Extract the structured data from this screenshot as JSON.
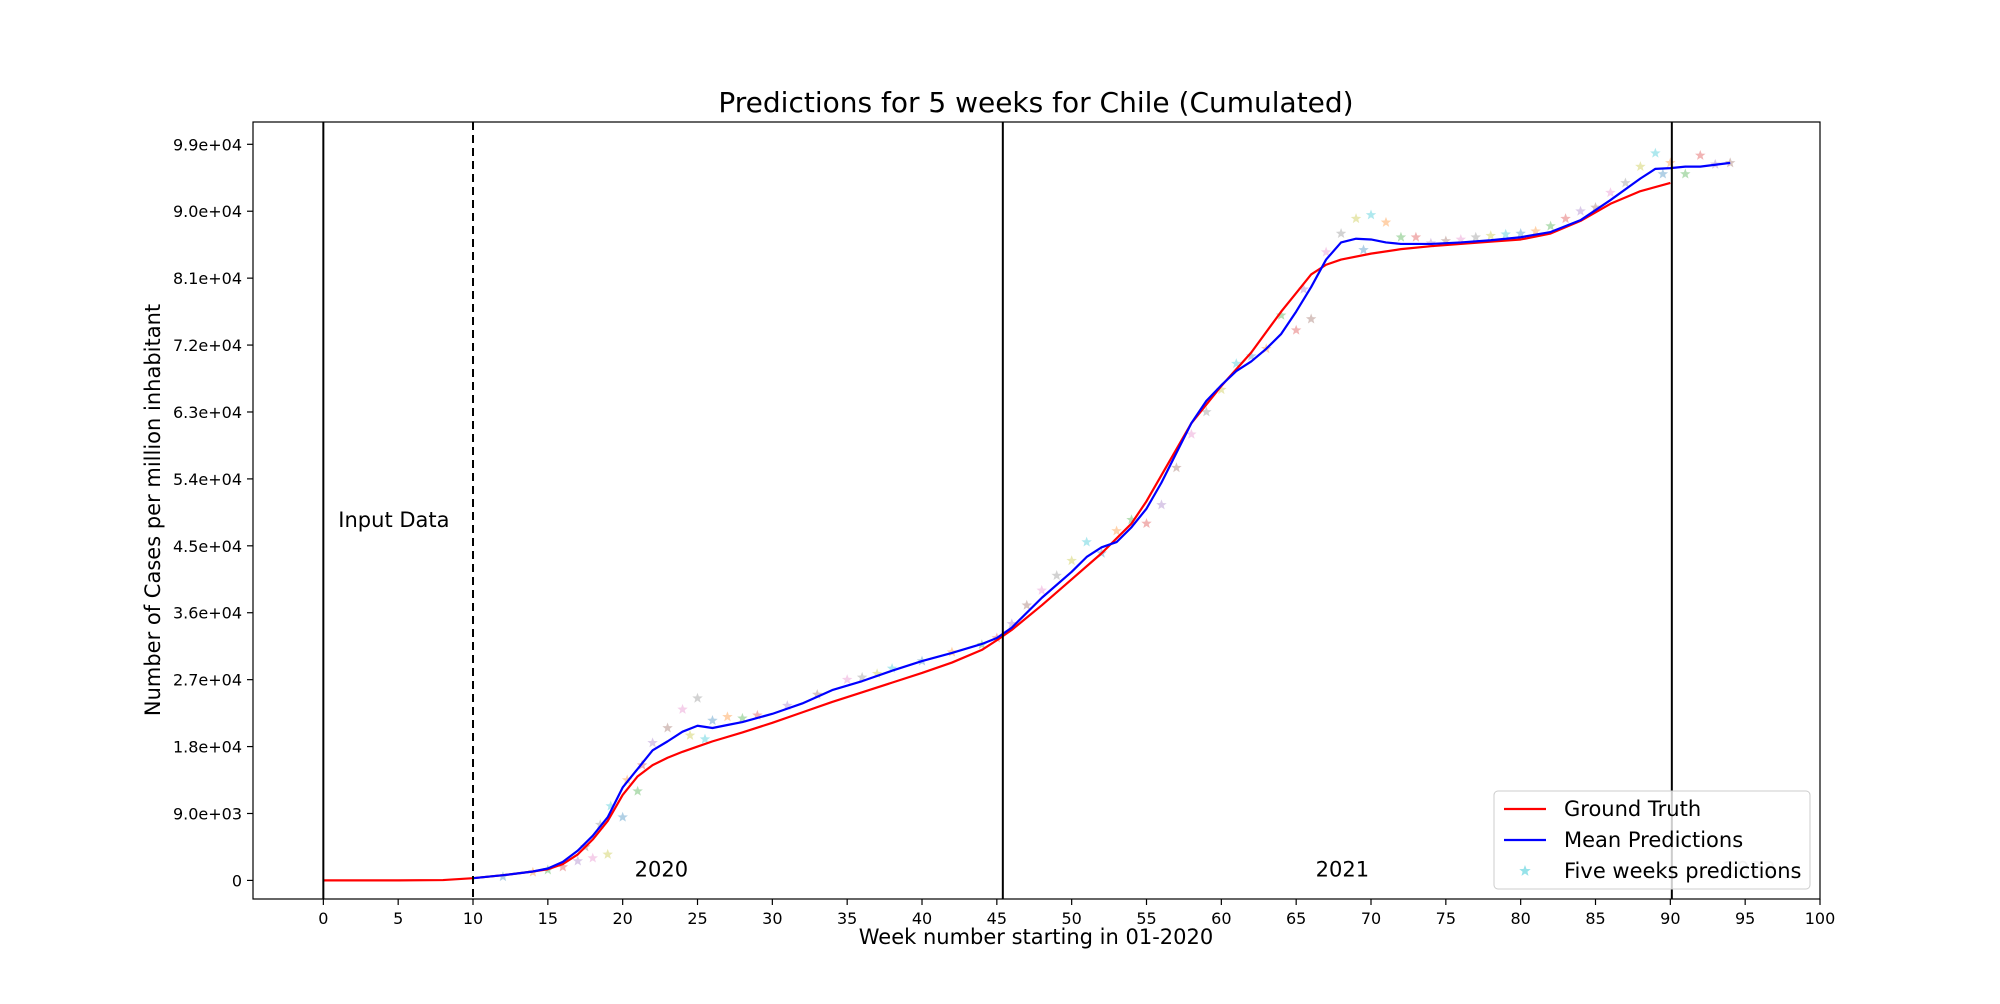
{
  "chart_data": {
    "type": "line",
    "title": "Predictions for 5 weeks for Chile (Cumulated)",
    "xlabel": "Week number starting in 01-2020",
    "ylabel": "Number of Cases per million inhabitant",
    "xlim": [
      -4.7,
      100
    ],
    "ylim": [
      -2500,
      102000
    ],
    "x_ticks": [
      0,
      5,
      10,
      15,
      20,
      25,
      30,
      35,
      40,
      45,
      50,
      55,
      60,
      65,
      70,
      75,
      80,
      85,
      90,
      95,
      100
    ],
    "y_ticks": [
      {
        "value": 0,
        "label": "0"
      },
      {
        "value": 9000,
        "label": "9.0e+03"
      },
      {
        "value": 18000,
        "label": "1.8e+04"
      },
      {
        "value": 27000,
        "label": "2.7e+04"
      },
      {
        "value": 36000,
        "label": "3.6e+04"
      },
      {
        "value": 45000,
        "label": "4.5e+04"
      },
      {
        "value": 54000,
        "label": "5.4e+04"
      },
      {
        "value": 63000,
        "label": "6.3e+04"
      },
      {
        "value": 72000,
        "label": "7.2e+04"
      },
      {
        "value": 81000,
        "label": "8.1e+04"
      },
      {
        "value": 90000,
        "label": "9.0e+04"
      },
      {
        "value": 99000,
        "label": "9.9e+04"
      }
    ],
    "grid": false,
    "legend_position": "bottom-right",
    "vertical_lines": [
      {
        "x": 0,
        "style": "solid"
      },
      {
        "x": 10,
        "style": "dashed"
      },
      {
        "x": 45.4,
        "style": "solid"
      },
      {
        "x": 90.1,
        "style": "solid"
      }
    ],
    "annotations": [
      {
        "text": "Input Data",
        "x": 1,
        "y": 47500
      },
      {
        "text": "2020",
        "x": 20.8,
        "y": 500
      },
      {
        "text": "2021",
        "x": 66.3,
        "y": 500
      },
      {
        "text": "2022",
        "x": 93.5,
        "y": 500,
        "faded": true
      }
    ],
    "series": [
      {
        "name": "Ground Truth",
        "color": "#ff0000",
        "x": [
          0,
          5,
          8,
          10,
          12,
          14,
          15,
          16,
          17,
          18,
          19,
          20,
          21,
          22,
          23,
          24,
          25,
          26,
          28,
          30,
          32,
          34,
          36,
          38,
          40,
          42,
          44,
          45,
          46,
          48,
          50,
          52,
          54,
          55,
          56,
          57,
          58,
          60,
          62,
          64,
          65,
          66,
          67,
          68,
          70,
          72,
          74,
          76,
          78,
          80,
          82,
          84,
          86,
          88,
          90
        ],
        "values": [
          0,
          0,
          50,
          300,
          700,
          1200,
          1500,
          2200,
          3500,
          5500,
          8000,
          11500,
          14000,
          15500,
          16500,
          17300,
          18000,
          18700,
          19900,
          21200,
          22600,
          24000,
          25300,
          26600,
          27900,
          29300,
          31000,
          32300,
          33700,
          37000,
          40500,
          44000,
          48000,
          51000,
          54500,
          58000,
          61500,
          66500,
          71000,
          76500,
          79000,
          81500,
          82800,
          83500,
          84300,
          84900,
          85300,
          85600,
          85900,
          86200,
          87000,
          88700,
          91000,
          92700,
          93800
        ]
      },
      {
        "name": "Mean Predictions",
        "color": "#0000ff",
        "x": [
          10,
          12,
          14,
          15,
          16,
          17,
          18,
          19,
          20,
          21,
          22,
          23,
          24,
          25,
          26,
          27,
          28,
          30,
          32,
          34,
          36,
          38,
          40,
          42,
          44,
          45,
          46,
          48,
          50,
          51,
          52,
          53,
          54,
          55,
          56,
          57,
          58,
          59,
          60,
          61,
          62,
          63,
          64,
          65,
          66,
          67,
          68,
          69,
          70,
          71,
          72,
          74,
          76,
          78,
          80,
          82,
          84,
          86,
          88,
          89,
          90,
          91,
          92,
          94
        ],
        "values": [
          300,
          700,
          1200,
          1600,
          2500,
          4000,
          6000,
          8500,
          12500,
          15000,
          17500,
          18700,
          20000,
          20800,
          20500,
          20900,
          21300,
          22400,
          23800,
          25600,
          26800,
          28200,
          29500,
          30600,
          31800,
          32600,
          34000,
          38000,
          41500,
          43500,
          44800,
          45500,
          47500,
          50000,
          53500,
          57500,
          61500,
          64500,
          66600,
          68500,
          69800,
          71500,
          73500,
          76500,
          79800,
          83500,
          85800,
          86300,
          86200,
          85800,
          85600,
          85600,
          85800,
          86100,
          86500,
          87200,
          88800,
          91500,
          94400,
          95700,
          95800,
          96000,
          96000,
          96500
        ]
      }
    ],
    "scatter": {
      "name": "Five weeks predictions",
      "marker": "star",
      "colors": [
        "#1f77b4",
        "#ff7f0e",
        "#2ca02c",
        "#d62728",
        "#9467bd",
        "#8c564b",
        "#e377c2",
        "#7f7f7f",
        "#bcbd22",
        "#17becf"
      ],
      "points": [
        [
          12,
          500
        ],
        [
          14,
          1100
        ],
        [
          15,
          1400
        ],
        [
          16,
          1800
        ],
        [
          17,
          2600
        ],
        [
          17.5,
          4500
        ],
        [
          18,
          3000
        ],
        [
          18.5,
          7500
        ],
        [
          19,
          3500
        ],
        [
          19.2,
          10000
        ],
        [
          20,
          8500
        ],
        [
          20.3,
          13500
        ],
        [
          21,
          12000
        ],
        [
          21.3,
          15500
        ],
        [
          22,
          18500
        ],
        [
          23,
          20500
        ],
        [
          24,
          23000
        ],
        [
          25,
          24500
        ],
        [
          24.5,
          19500
        ],
        [
          25.5,
          19000
        ],
        [
          26,
          21500
        ],
        [
          27,
          22000
        ],
        [
          28,
          21800
        ],
        [
          29,
          22200
        ],
        [
          31,
          23500
        ],
        [
          33,
          25000
        ],
        [
          35,
          27000
        ],
        [
          36,
          27300
        ],
        [
          37,
          27800
        ],
        [
          38,
          28500
        ],
        [
          40,
          29500
        ],
        [
          42,
          30700
        ],
        [
          44,
          31700
        ],
        [
          45,
          32600
        ],
        [
          46,
          34500
        ],
        [
          47,
          37000
        ],
        [
          48,
          39000
        ],
        [
          49,
          41000
        ],
        [
          50,
          43000
        ],
        [
          51,
          45500
        ],
        [
          52,
          44000
        ],
        [
          53,
          47000
        ],
        [
          54,
          48500
        ],
        [
          55,
          48000
        ],
        [
          56,
          50500
        ],
        [
          57,
          55500
        ],
        [
          58,
          60000
        ],
        [
          59,
          63000
        ],
        [
          60,
          66000
        ],
        [
          61,
          69500
        ],
        [
          62,
          70500
        ],
        [
          63,
          71500
        ],
        [
          64,
          76000
        ],
        [
          65,
          74000
        ],
        [
          65.5,
          79500
        ],
        [
          66,
          75500
        ],
        [
          67,
          84500
        ],
        [
          68,
          87000
        ],
        [
          69,
          89000
        ],
        [
          70,
          89500
        ],
        [
          69.5,
          84800
        ],
        [
          71,
          88500
        ],
        [
          72,
          86500
        ],
        [
          73,
          86500
        ],
        [
          74,
          85700
        ],
        [
          75,
          86000
        ],
        [
          76,
          86200
        ],
        [
          77,
          86500
        ],
        [
          78,
          86700
        ],
        [
          79,
          86900
        ],
        [
          80,
          87000
        ],
        [
          81,
          87300
        ],
        [
          82,
          88000
        ],
        [
          83,
          89000
        ],
        [
          84,
          90000
        ],
        [
          85,
          90500
        ],
        [
          86,
          92500
        ],
        [
          87,
          93800
        ],
        [
          88,
          96000
        ],
        [
          89,
          97800
        ],
        [
          89.5,
          95000
        ],
        [
          90,
          96500
        ],
        [
          91,
          95000
        ],
        [
          92,
          97500
        ],
        [
          93,
          96300
        ],
        [
          94,
          96500
        ]
      ]
    }
  }
}
